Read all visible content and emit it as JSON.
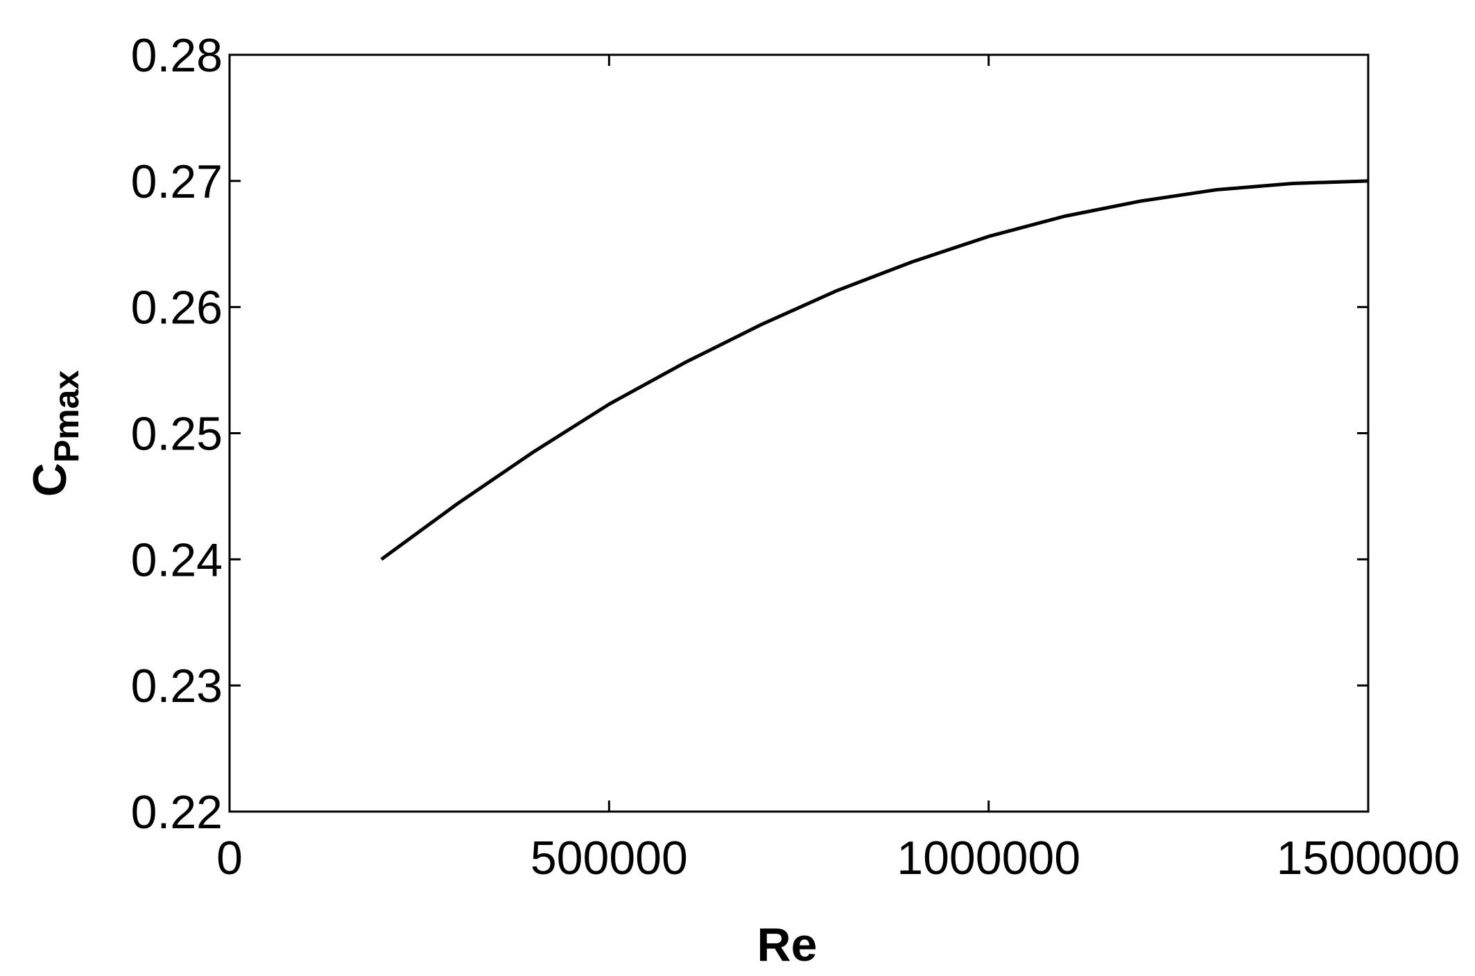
{
  "chart_data": {
    "type": "line",
    "xlabel": "Re",
    "ylabel": "C",
    "ylabel_sub": "Pmax",
    "x": [
      200000,
      300000,
      400000,
      500000,
      600000,
      700000,
      800000,
      900000,
      1000000,
      1100000,
      1200000,
      1300000,
      1400000,
      1500000
    ],
    "series": [
      {
        "color": "#000000",
        "values": [
          0.24,
          0.2444,
          0.2485,
          0.2523,
          0.2556,
          0.2586,
          0.2613,
          0.2636,
          0.2656,
          0.2672,
          0.2684,
          0.2693,
          0.2698,
          0.27
        ]
      }
    ],
    "xlim": [
      0,
      1500000
    ],
    "xticks": [
      0,
      500000,
      1000000,
      1500000
    ],
    "ylim": [
      0.22,
      0.28
    ],
    "yticks": [
      0.22,
      0.23,
      0.24,
      0.25,
      0.26,
      0.27,
      0.28
    ],
    "grid": false
  }
}
